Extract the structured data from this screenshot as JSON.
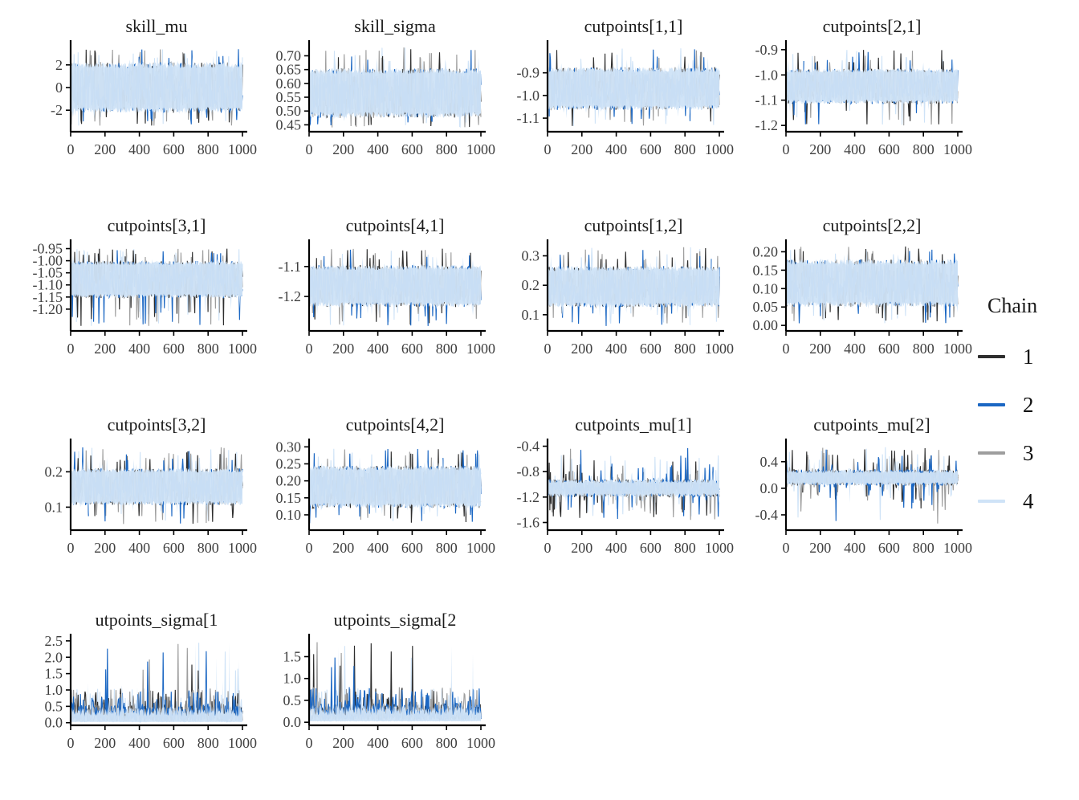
{
  "chart_data": {
    "type": "line",
    "description": "MCMC trace plots, 4 chains per parameter, iterations 0-1000",
    "x_range": [
      0,
      1000
    ],
    "x_tick_labels": [
      "0",
      "200",
      "400",
      "600",
      "800",
      "1000"
    ],
    "x_tick_values": [
      0,
      200,
      400,
      600,
      800,
      1000
    ],
    "legend": {
      "title": "Chain",
      "position": "right",
      "entries": [
        {
          "label": "1",
          "color": "#2e2e2e"
        },
        {
          "label": "2",
          "color": "#1b67c3"
        },
        {
          "label": "3",
          "color": "#9e9e9e"
        },
        {
          "label": "4",
          "color": "#cfe3f7"
        }
      ]
    },
    "panels": [
      {
        "title": "skill_mu",
        "row": 0,
        "col": 0,
        "y_tick_labels": [
          "2",
          "0",
          "-2"
        ],
        "y_tick_values": [
          2,
          0,
          -2
        ],
        "ylim": [
          -3.9,
          3.9
        ],
        "band": [
          -2.25,
          2.25
        ],
        "extremes": [
          -3.4,
          3.4
        ],
        "profile": "dense"
      },
      {
        "title": "skill_sigma",
        "row": 0,
        "col": 1,
        "y_tick_labels": [
          "0.70",
          "0.65",
          "0.60",
          "0.55",
          "0.50",
          "0.45"
        ],
        "y_tick_values": [
          0.7,
          0.65,
          0.6,
          0.55,
          0.5,
          0.45
        ],
        "ylim": [
          0.425,
          0.745
        ],
        "band": [
          0.475,
          0.655
        ],
        "extremes": [
          0.44,
          0.73
        ],
        "profile": "dense"
      },
      {
        "title": "cutpoints[1,1]",
        "row": 0,
        "col": 2,
        "y_tick_labels": [
          "-0.9",
          "-1.0",
          "-1.1"
        ],
        "y_tick_values": [
          -0.9,
          -1.0,
          -1.1
        ],
        "ylim": [
          -1.16,
          -0.77
        ],
        "band": [
          -1.065,
          -0.875
        ],
        "extremes": [
          -1.14,
          -0.79
        ],
        "profile": "dense"
      },
      {
        "title": "cutpoints[2,1]",
        "row": 0,
        "col": 3,
        "y_tick_labels": [
          "-0.9",
          "-1.0",
          "-1.1",
          "-1.2"
        ],
        "y_tick_values": [
          -0.9,
          -1.0,
          -1.1,
          -1.2
        ],
        "ylim": [
          -1.225,
          -0.875
        ],
        "band": [
          -1.115,
          -0.975
        ],
        "extremes": [
          -1.2,
          -0.9
        ],
        "profile": "dense"
      },
      {
        "title": "cutpoints[3,1]",
        "row": 1,
        "col": 0,
        "y_tick_labels": [
          "-0.95",
          "-1.00",
          "-1.05",
          "-1.10",
          "-1.15",
          "-1.20"
        ],
        "y_tick_values": [
          -0.95,
          -1.0,
          -1.05,
          -1.1,
          -1.15,
          -1.2
        ],
        "ylim": [
          -1.29,
          -0.925
        ],
        "band": [
          -1.155,
          -1.0
        ],
        "extremes": [
          -1.27,
          -0.95
        ],
        "profile": "dense"
      },
      {
        "title": "cutpoints[4,1]",
        "row": 1,
        "col": 1,
        "y_tick_labels": [
          "-1.1",
          "-1.2"
        ],
        "y_tick_values": [
          -1.1,
          -1.2
        ],
        "ylim": [
          -1.315,
          -1.02
        ],
        "band": [
          -1.235,
          -1.095
        ],
        "extremes": [
          -1.3,
          -1.04
        ],
        "profile": "dense"
      },
      {
        "title": "cutpoints[1,2]",
        "row": 1,
        "col": 2,
        "y_tick_labels": [
          "0.3",
          "0.2",
          "0.1"
        ],
        "y_tick_values": [
          0.3,
          0.2,
          0.1
        ],
        "ylim": [
          0.045,
          0.345
        ],
        "band": [
          0.125,
          0.265
        ],
        "extremes": [
          0.06,
          0.33
        ],
        "profile": "dense"
      },
      {
        "title": "cutpoints[2,2]",
        "row": 1,
        "col": 3,
        "y_tick_labels": [
          "0.20",
          "0.15",
          "0.10",
          "0.05",
          "0.00"
        ],
        "y_tick_values": [
          0.2,
          0.15,
          0.1,
          0.05,
          0.0
        ],
        "ylim": [
          -0.015,
          0.225
        ],
        "band": [
          0.05,
          0.18
        ],
        "extremes": [
          0.005,
          0.215
        ],
        "profile": "dense"
      },
      {
        "title": "cutpoints[3,2]",
        "row": 2,
        "col": 0,
        "y_tick_labels": [
          "0.2",
          "0.1"
        ],
        "y_tick_values": [
          0.2,
          0.1
        ],
        "ylim": [
          0.035,
          0.285
        ],
        "band": [
          0.105,
          0.21
        ],
        "extremes": [
          0.05,
          0.27
        ],
        "profile": "dense"
      },
      {
        "title": "cutpoints[4,2]",
        "row": 2,
        "col": 1,
        "y_tick_labels": [
          "0.30",
          "0.25",
          "0.20",
          "0.15",
          "0.10"
        ],
        "y_tick_values": [
          0.3,
          0.25,
          0.2,
          0.15,
          0.1
        ],
        "ylim": [
          0.055,
          0.315
        ],
        "band": [
          0.12,
          0.245
        ],
        "extremes": [
          0.075,
          0.295
        ],
        "profile": "dense"
      },
      {
        "title": "cutpoints_mu[1]",
        "row": 2,
        "col": 2,
        "y_tick_labels": [
          "-0.4",
          "-0.8",
          "-1.2",
          "-1.6"
        ],
        "y_tick_values": [
          -0.4,
          -0.8,
          -1.2,
          -1.6
        ],
        "ylim": [
          -1.72,
          -0.33
        ],
        "band": [
          -1.2,
          -0.92
        ],
        "extremes": [
          -1.52,
          -0.42
        ],
        "profile": "narrow"
      },
      {
        "title": "cutpoints_mu[2]",
        "row": 2,
        "col": 3,
        "y_tick_labels": [
          "0.4",
          "0.0",
          "-0.4"
        ],
        "y_tick_values": [
          0.4,
          0.0,
          -0.4
        ],
        "ylim": [
          -0.63,
          0.7
        ],
        "band": [
          0.04,
          0.28
        ],
        "extremes": [
          -0.56,
          0.62
        ],
        "profile": "narrow"
      },
      {
        "title": "utpoints_sigma[1",
        "row": 3,
        "col": 0,
        "y_tick_labels": [
          "2.5",
          "2.0",
          "1.5",
          "1.0",
          "0.5",
          "0.0"
        ],
        "y_tick_values": [
          2.5,
          2.0,
          1.5,
          1.0,
          0.5,
          0.0
        ],
        "ylim": [
          -0.08,
          2.62
        ],
        "band": [
          0.02,
          0.5
        ],
        "extremes": [
          0.0,
          2.45
        ],
        "profile": "positive"
      },
      {
        "title": "utpoints_sigma[2",
        "row": 3,
        "col": 1,
        "y_tick_labels": [
          "1.5",
          "1.0",
          "0.5",
          "0.0"
        ],
        "y_tick_values": [
          1.5,
          1.0,
          0.5,
          0.0
        ],
        "ylim": [
          -0.07,
          1.95
        ],
        "band": [
          0.02,
          0.4
        ],
        "extremes": [
          0.0,
          1.85
        ],
        "profile": "positive"
      }
    ],
    "style": {
      "axis_color": "#000000",
      "tick_label_color": "#3f3f3f",
      "title_color": "#1a1a1a",
      "band_fill": "#cfe3f7",
      "background": "#ffffff"
    }
  }
}
